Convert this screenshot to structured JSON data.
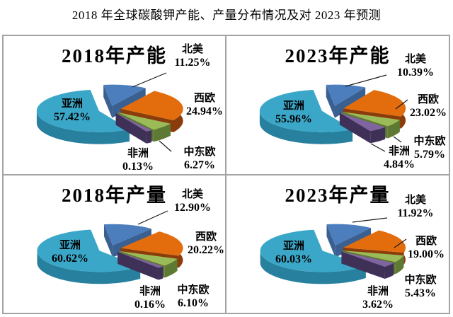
{
  "page_title": "2018 年全球碳酸钾产能、产量分布情况及对 2023 年预测",
  "border_color": "#a3a3a3",
  "chart_data": [
    {
      "type": "pie",
      "title": "2018年产能",
      "legend_position": "none",
      "regions": [
        {
          "name": "北美",
          "slug": "north-america",
          "value": 11.25,
          "label": "11.25%",
          "color": "#4C7EBD",
          "side_color": "#3A5F91"
        },
        {
          "name": "西欧",
          "slug": "western-europe",
          "value": 24.94,
          "label": "24.94%",
          "color": "#E36D0D",
          "side_color": "#8A3C0A"
        },
        {
          "name": "中东欧",
          "slug": "central-eastern-europe",
          "value": 6.27,
          "label": "6.27%",
          "color": "#9BBB59",
          "side_color": "#5E7933"
        },
        {
          "name": "非洲",
          "slug": "africa",
          "value": 0.13,
          "label": "0.13%",
          "color": "#8064A2",
          "side_color": "#3F3057"
        },
        {
          "name": "亚洲",
          "slug": "asia",
          "value": 57.42,
          "label": "57.42%",
          "color": "#3BA7C8",
          "side_color": "#27809E"
        }
      ]
    },
    {
      "type": "pie",
      "title": "2023年产能",
      "legend_position": "none",
      "regions": [
        {
          "name": "北美",
          "slug": "north-america",
          "value": 10.39,
          "label": "10.39%",
          "color": "#4C7EBD",
          "side_color": "#3A5F91"
        },
        {
          "name": "西欧",
          "slug": "western-europe",
          "value": 23.02,
          "label": "23.02%",
          "color": "#E36D0D",
          "side_color": "#8A3C0A"
        },
        {
          "name": "中东欧",
          "slug": "central-eastern-europe",
          "value": 5.79,
          "label": "5.79%",
          "color": "#9BBB59",
          "side_color": "#5E7933"
        },
        {
          "name": "非洲",
          "slug": "africa",
          "value": 4.84,
          "label": "4.84%",
          "color": "#8064A2",
          "side_color": "#3F3057"
        },
        {
          "name": "亚洲",
          "slug": "asia",
          "value": 55.96,
          "label": "55.96%",
          "color": "#3BA7C8",
          "side_color": "#27809E"
        }
      ]
    },
    {
      "type": "pie",
      "title": "2018年产量",
      "legend_position": "none",
      "regions": [
        {
          "name": "北美",
          "slug": "north-america",
          "value": 12.9,
          "label": "12.90%",
          "color": "#4C7EBD",
          "side_color": "#3A5F91"
        },
        {
          "name": "西欧",
          "slug": "western-europe",
          "value": 20.22,
          "label": "20.22%",
          "color": "#E36D0D",
          "side_color": "#8A3C0A"
        },
        {
          "name": "中东欧",
          "slug": "central-eastern-europe",
          "value": 6.1,
          "label": "6.10%",
          "color": "#9BBB59",
          "side_color": "#5E7933"
        },
        {
          "name": "非洲",
          "slug": "africa",
          "value": 0.16,
          "label": "0.16%",
          "color": "#8064A2",
          "side_color": "#3F3057"
        },
        {
          "name": "亚洲",
          "slug": "asia",
          "value": 60.62,
          "label": "60.62%",
          "color": "#3BA7C8",
          "side_color": "#27809E"
        }
      ]
    },
    {
      "type": "pie",
      "title": "2023年产量",
      "legend_position": "none",
      "regions": [
        {
          "name": "北美",
          "slug": "north-america",
          "value": 11.92,
          "label": "11.92%",
          "color": "#4C7EBD",
          "side_color": "#3A5F91"
        },
        {
          "name": "西欧",
          "slug": "western-europe",
          "value": 19.0,
          "label": "19.00%",
          "color": "#E36D0D",
          "side_color": "#8A3C0A"
        },
        {
          "name": "中东欧",
          "slug": "central-eastern-europe",
          "value": 5.43,
          "label": "5.43%",
          "color": "#9BBB59",
          "side_color": "#5E7933"
        },
        {
          "name": "非洲",
          "slug": "africa",
          "value": 3.62,
          "label": "3.62%",
          "color": "#8064A2",
          "side_color": "#3F3057"
        },
        {
          "name": "亚洲",
          "slug": "asia",
          "value": 60.03,
          "label": "60.03%",
          "color": "#3BA7C8",
          "side_color": "#27809E"
        }
      ]
    }
  ]
}
